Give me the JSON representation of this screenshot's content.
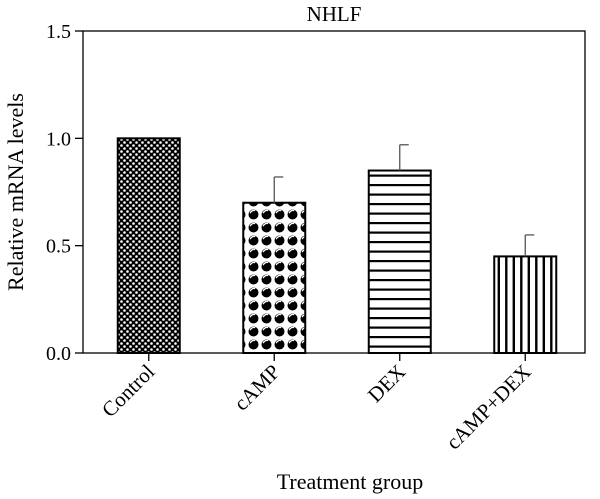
{
  "chart_data": {
    "type": "bar",
    "title": "NHLF",
    "xlabel": "Treatment group",
    "ylabel": "Relative mRNA levels",
    "ylim": [
      0,
      1.5
    ],
    "yticks": [
      "0.0",
      "0.5",
      "1.0",
      "1.5"
    ],
    "categories": [
      "Control",
      "cAMP",
      "DEX",
      "cAMP+DEX"
    ],
    "values": [
      1.0,
      0.7,
      0.85,
      0.45
    ],
    "errors": [
      0.0,
      0.12,
      0.12,
      0.1
    ],
    "patterns": [
      "fine-dots",
      "circles",
      "horizontal-lines",
      "vertical-lines"
    ],
    "bar_color": "#000000",
    "background": "#ffffff"
  }
}
